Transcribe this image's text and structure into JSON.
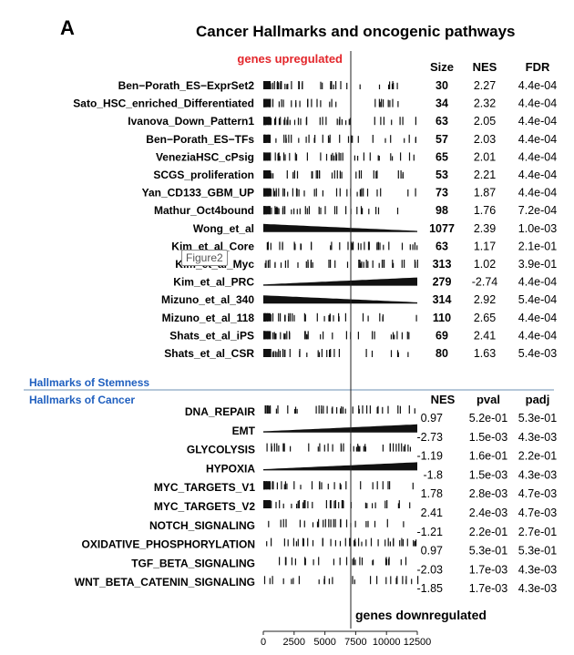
{
  "panel_letter": "A",
  "title": "Cancer Hallmarks and oncogenic pathways",
  "up_label": "genes upregulated",
  "down_label": "genes downregulated",
  "tooltip": "Figure2",
  "chart_data": {
    "type": "barcode",
    "title": "Cancer Hallmarks and oncogenic pathways",
    "x_axis": {
      "ticks": [
        0,
        2500,
        5000,
        7500,
        10000,
        12500
      ],
      "range": [
        0,
        12500
      ],
      "divider": 7500
    },
    "stemness": {
      "section_label": "Hallmarks of Stemness",
      "columns": [
        "Size",
        "NES",
        "FDR"
      ],
      "rows": [
        {
          "name": "Ben−Porath_ES−ExprSet2",
          "size": "30",
          "nes": "2.27",
          "fdr": "4.4e-04",
          "pattern": "up"
        },
        {
          "name": "Sato_HSC_enriched_Differentiated",
          "size": "34",
          "nes": "2.32",
          "fdr": "4.4e-04",
          "pattern": "up"
        },
        {
          "name": "Ivanova_Down_Pattern1",
          "size": "63",
          "nes": "2.05",
          "fdr": "4.4e-04",
          "pattern": "up"
        },
        {
          "name": "Ben−Porath_ES−TFs",
          "size": "57",
          "nes": "2.03",
          "fdr": "4.4e-04",
          "pattern": "up"
        },
        {
          "name": "VeneziaHSC_cPsig",
          "size": "65",
          "nes": "2.01",
          "fdr": "4.4e-04",
          "pattern": "up"
        },
        {
          "name": "SCGS_proliferation",
          "size": "53",
          "nes": "2.21",
          "fdr": "4.4e-04",
          "pattern": "up"
        },
        {
          "name": "Yan_CD133_GBM_UP",
          "size": "73",
          "nes": "1.87",
          "fdr": "4.4e-04",
          "pattern": "up"
        },
        {
          "name": "Mathur_Oct4bound",
          "size": "98",
          "nes": "1.76",
          "fdr": "7.2e-04",
          "pattern": "up"
        },
        {
          "name": "Wong_et_al",
          "size": "1077",
          "nes": "2.39",
          "fdr": "1.0e-03",
          "pattern": "dense-up"
        },
        {
          "name": "Kim_et_al_Core",
          "size": "63",
          "nes": "1.17",
          "fdr": "2.1e-01",
          "pattern": "mixed"
        },
        {
          "name": "Kim_et_al_Myc",
          "size": "313",
          "nes": "1.02",
          "fdr": "3.9e-01",
          "pattern": "mixed"
        },
        {
          "name": "Kim_et_al_PRC",
          "size": "279",
          "nes": "-2.74",
          "fdr": "4.4e-04",
          "pattern": "down"
        },
        {
          "name": "Mizuno_et_al_340",
          "size": "314",
          "nes": "2.92",
          "fdr": "5.4e-04",
          "pattern": "dense-up"
        },
        {
          "name": "Mizuno_et_al_118",
          "size": "110",
          "nes": "2.65",
          "fdr": "4.4e-04",
          "pattern": "up"
        },
        {
          "name": "Shats_et_al_iPS",
          "size": "69",
          "nes": "2.41",
          "fdr": "4.4e-04",
          "pattern": "up"
        },
        {
          "name": "Shats_et_al_CSR",
          "size": "80",
          "nes": "1.63",
          "fdr": "5.4e-03",
          "pattern": "up"
        }
      ]
    },
    "cancer": {
      "section_label": "Hallmarks of Cancer",
      "columns": [
        "NES",
        "pval",
        "padj"
      ],
      "rows": [
        {
          "name": "DNA_REPAIR",
          "nes": "0.97",
          "pval": "5.2e-01",
          "padj": "5.3e-01",
          "pattern": "mixed"
        },
        {
          "name": "EMT",
          "nes": "-2.73",
          "pval": "1.5e-03",
          "padj": "4.3e-03",
          "pattern": "down"
        },
        {
          "name": "GLYCOLYSIS",
          "nes": "-1.19",
          "pval": "1.6e-01",
          "padj": "2.2e-01",
          "pattern": "mixed"
        },
        {
          "name": "HYPOXIA",
          "nes": "-1.8",
          "pval": "1.5e-03",
          "padj": "4.3e-03",
          "pattern": "down"
        },
        {
          "name": "MYC_TARGETS_V1",
          "nes": "1.78",
          "pval": "2.8e-03",
          "padj": "4.7e-03",
          "pattern": "up"
        },
        {
          "name": "MYC_TARGETS_V2",
          "nes": "2.41",
          "pval": "2.4e-03",
          "padj": "4.7e-03",
          "pattern": "up"
        },
        {
          "name": "NOTCH_SIGNALING",
          "nes": "-1.21",
          "pval": "2.2e-01",
          "padj": "2.7e-01",
          "pattern": "sparse"
        },
        {
          "name": "OXIDATIVE_PHOSPHORYLATION",
          "nes": "0.97",
          "pval": "5.3e-01",
          "padj": "5.3e-01",
          "pattern": "mixed"
        },
        {
          "name": "TGF_BETA_SIGNALING",
          "nes": "-2.03",
          "pval": "1.7e-03",
          "padj": "4.3e-03",
          "pattern": "sparse"
        },
        {
          "name": "WNT_BETA_CATENIN_SIGNALING",
          "nes": "-1.85",
          "pval": "1.7e-03",
          "padj": "4.3e-03",
          "pattern": "sparse"
        }
      ]
    }
  }
}
